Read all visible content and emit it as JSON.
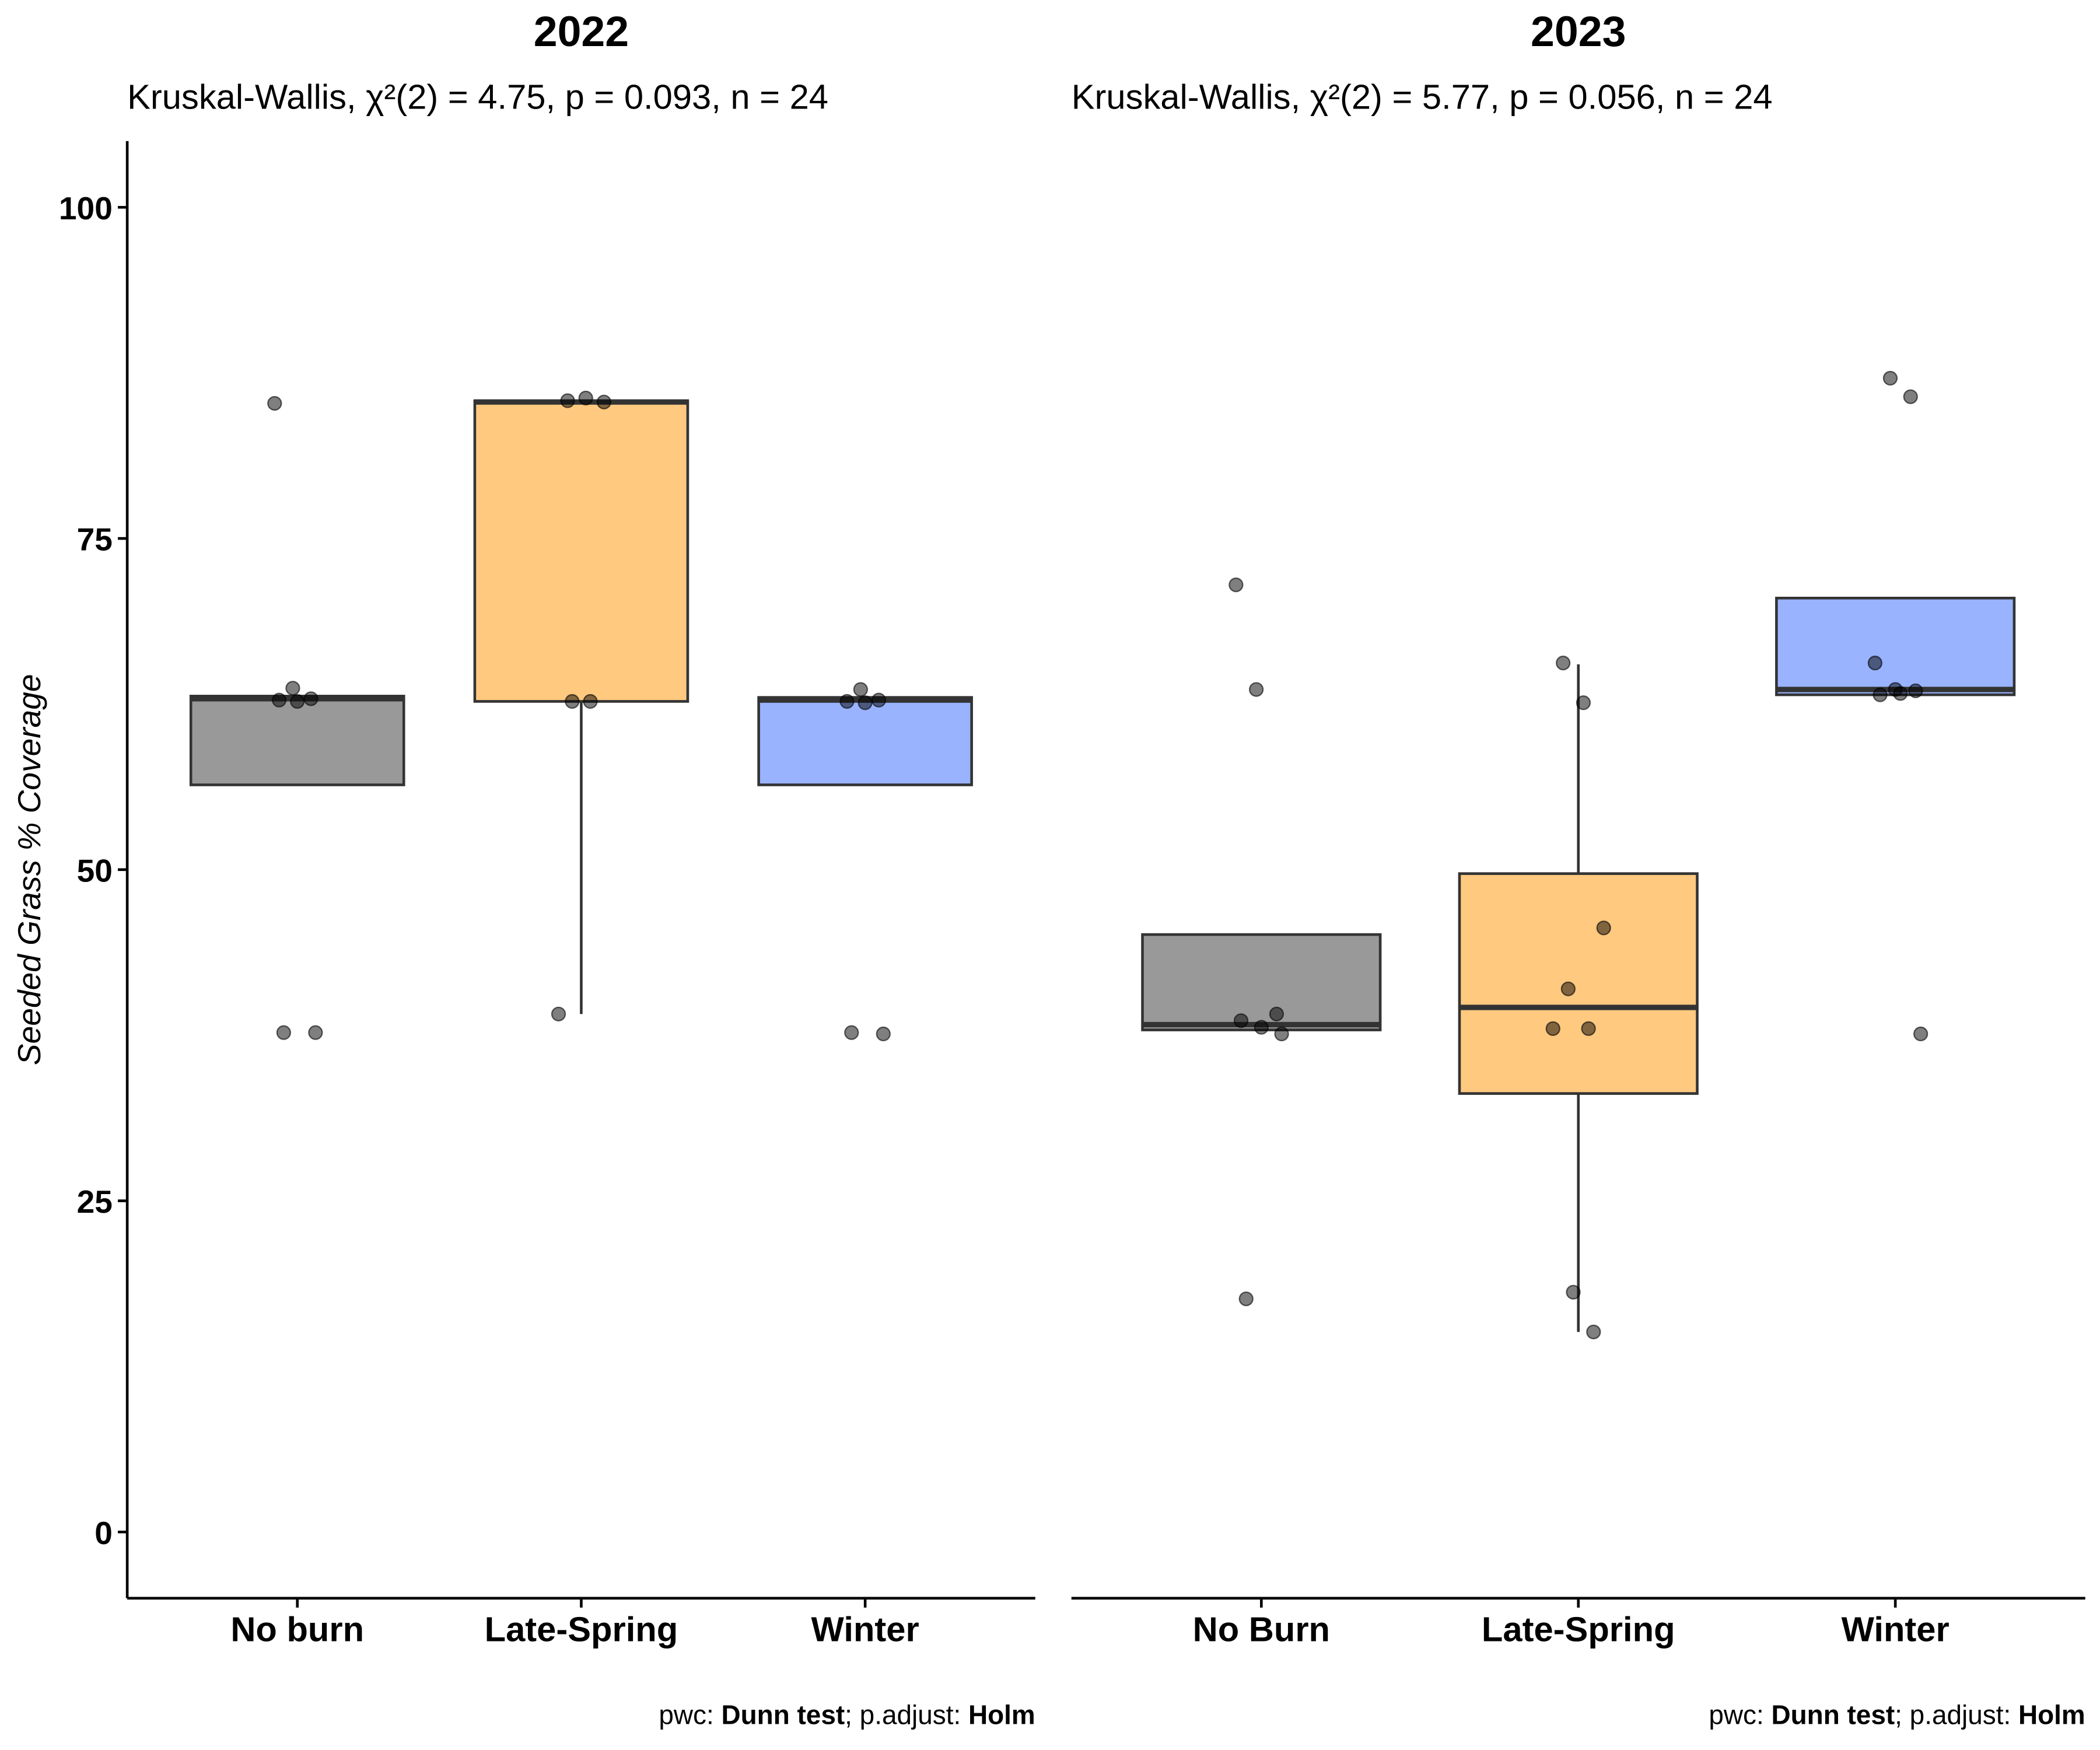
{
  "chart_data": [
    {
      "type": "box",
      "title": "2022",
      "subtitle": "Kruskal-Wallis, χ²(2) = 4.75, p = 0.093, n = 24",
      "ylabel": "Seeded Grass % Coverage",
      "caption": [
        "pwc: ",
        "Dunn test",
        "; p.adjust: ",
        "Holm"
      ],
      "categories": [
        "No burn",
        "Late-Spring",
        "Winter"
      ],
      "colors": [
        "#999999",
        "#ffc97f",
        "#99b3ff"
      ],
      "boxes": [
        {
          "q1": 56.4,
          "median": 62.9,
          "q3": 63.1,
          "whisker_low": null,
          "whisker_high": null,
          "points": [
            85.2,
            63.7,
            62.9,
            62.8,
            62.7,
            37.7,
            37.7
          ]
        },
        {
          "q1": 62.7,
          "median": 85.3,
          "q3": 85.4,
          "whisker_low": 39.1,
          "whisker_high": null,
          "points": [
            85.4,
            85.6,
            85.3,
            62.7,
            62.7,
            39.1
          ]
        },
        {
          "q1": 56.4,
          "median": 62.8,
          "q3": 63.0,
          "whisker_low": null,
          "whisker_high": null,
          "points": [
            63.6,
            62.8,
            62.7,
            62.6,
            37.6,
            37.7
          ]
        }
      ],
      "ylim": [
        -5,
        105
      ],
      "yticks": [
        0,
        25,
        50,
        75,
        100
      ]
    },
    {
      "type": "box",
      "title": "2023",
      "subtitle": "Kruskal-Wallis, χ²(2) = 5.77, p = 0.056, n = 24",
      "caption": [
        "pwc: ",
        "Dunn test",
        "; p.adjust: ",
        "Holm"
      ],
      "categories": [
        "No Burn",
        "Late-Spring",
        "Winter"
      ],
      "colors": [
        "#999999",
        "#ffc97f",
        "#99b3ff"
      ],
      "boxes": [
        {
          "q1": 37.9,
          "median": 38.3,
          "q3": 45.1,
          "whisker_low": null,
          "whisker_high": null,
          "points": [
            71.5,
            63.6,
            39.1,
            38.6,
            38.1,
            37.6,
            17.6
          ]
        },
        {
          "q1": 33.1,
          "median": 39.6,
          "q3": 49.7,
          "whisker_low": 15.1,
          "whisker_high": 65.5,
          "points": [
            65.6,
            62.6,
            45.6,
            41.0,
            38.0,
            38.0,
            18.1,
            15.1
          ]
        },
        {
          "q1": 63.2,
          "median": 63.6,
          "q3": 70.5,
          "whisker_low": null,
          "whisker_high": null,
          "points": [
            87.1,
            85.7,
            65.6,
            63.6,
            63.5,
            63.2,
            63.3,
            37.6
          ]
        }
      ],
      "ylim": [
        -5,
        105
      ]
    }
  ]
}
